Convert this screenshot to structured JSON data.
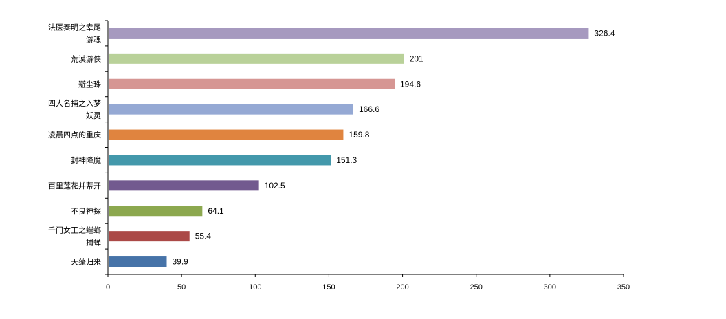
{
  "chart_data": {
    "type": "bar",
    "orientation": "horizontal",
    "title": "",
    "xlabel": "",
    "ylabel": "",
    "xlim": [
      0,
      350
    ],
    "x_ticks": [
      0,
      50,
      100,
      150,
      200,
      250,
      300,
      350
    ],
    "grid": false,
    "legend": "none",
    "categories": [
      [
        "法医秦明之幸尾",
        "游魂"
      ],
      [
        "荒漠游侠"
      ],
      [
        "避尘珠"
      ],
      [
        "四大名捕之入梦",
        "妖灵"
      ],
      [
        "凌晨四点的重庆"
      ],
      [
        "封神降魔"
      ],
      [
        "百里莲花并蒂开"
      ],
      [
        "不良神探"
      ],
      [
        "千门女王之螳螂",
        "捕蝉"
      ],
      [
        "天蓬归来"
      ]
    ],
    "values": [
      326.4,
      201,
      194.6,
      166.6,
      159.8,
      151.3,
      102.5,
      64.1,
      55.4,
      39.9
    ],
    "value_labels": [
      "326.4",
      "201",
      "194.6",
      "166.6",
      "159.8",
      "151.3",
      "102.5",
      "64.1",
      "55.4",
      "39.9"
    ],
    "colors": [
      "#a699bf",
      "#b9d199",
      "#d69693",
      "#95a9d4",
      "#e0843f",
      "#4398ab",
      "#725a8f",
      "#8ca84f",
      "#ab4947",
      "#4673a8"
    ]
  }
}
